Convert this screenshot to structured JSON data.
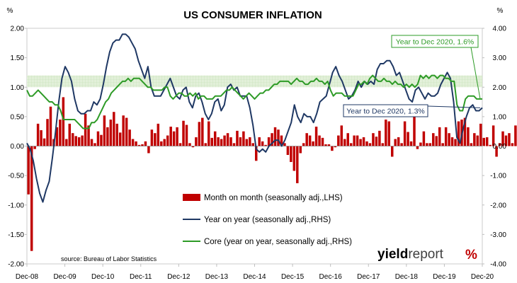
{
  "chart_data": {
    "type": "bar+line",
    "title": "US CONSUMER INFLATION",
    "left_unit": "%",
    "right_unit": "%",
    "source": "source: Bureau of Labor Statistics",
    "logo": {
      "prefix": "yield",
      "suffix": "report",
      "mark": "%",
      "mark_color": "#c00000"
    },
    "x_tick_labels": [
      "Dec-08",
      "Dec-09",
      "Dec-10",
      "Dec-11",
      "Dec-12",
      "Dec-13",
      "Dec-14",
      "Dec-15",
      "Dec-16",
      "Dec-17",
      "Dec-18",
      "Dec-19",
      "Dec-20"
    ],
    "x_start": "2008-12",
    "x_end": "2020-12",
    "y_left": {
      "min": -2.0,
      "max": 2.0,
      "ticks": [
        "-2.00",
        "-1.50",
        "-1.00",
        "-0.50",
        "0.00",
        "0.50",
        "1.00",
        "1.50",
        "2.00"
      ]
    },
    "y_right": {
      "min": -4.0,
      "max": 4.0,
      "ticks": [
        "-4.00",
        "-3.00",
        "-2.00",
        "-1.00",
        "0.00",
        "1.00",
        "2.00",
        "3.00",
        "4.00"
      ]
    },
    "target_band_rhs": [
      2.0,
      2.4
    ],
    "grid": false,
    "legend_position": "bottom-center",
    "series": [
      {
        "name": "Month on month (seasonally adj.,LHS)",
        "type": "bar",
        "axis": "left",
        "color": "#c00000",
        "values": [
          -0.82,
          -1.78,
          -0.05,
          0.38,
          0.27,
          0.13,
          0.46,
          0.67,
          0.12,
          0.32,
          0.45,
          0.83,
          0.12,
          0.38,
          0.22,
          0.17,
          0.15,
          0.18,
          0.55,
          0.35,
          0.12,
          0.05,
          0.25,
          0.19,
          0.52,
          0.32,
          0.45,
          0.58,
          0.38,
          0.23,
          0.52,
          0.48,
          0.28,
          0.12,
          0.08,
          0.02,
          0.03,
          0.08,
          -0.12,
          0.28,
          0.22,
          0.38,
          0.08,
          0.12,
          0.18,
          0.33,
          0.25,
          0.32,
          0.05,
          0.43,
          0.36,
          0.05,
          -0.02,
          0.15,
          0.41,
          0.48,
          0.05,
          0.42,
          0.14,
          0.25,
          0.15,
          0.12,
          0.18,
          0.22,
          0.15,
          0.05,
          0.26,
          0.15,
          0.25,
          0.12,
          0.15,
          0.05,
          -0.25,
          0.15,
          0.08,
          0.02,
          0.15,
          0.22,
          0.32,
          0.28,
          0.18,
          0.05,
          -0.15,
          -0.27,
          -0.42,
          -0.63,
          -0.12,
          0.05,
          0.22,
          0.18,
          0.08,
          0.33,
          0.18,
          0.14,
          0.03,
          0.03,
          -0.08,
          -0.02,
          0.18,
          0.35,
          0.12,
          0.22,
          0.05,
          0.18,
          0.18,
          0.12,
          0.15,
          0.08,
          0.05,
          0.22,
          0.16,
          0.26,
          0.05,
          0.45,
          0.42,
          -0.18,
          0.12,
          0.15,
          0.05,
          0.42,
          0.24,
          0.08,
          0.52,
          -0.05,
          0.06,
          0.25,
          0.05,
          0.05,
          0.22,
          0.17,
          0.32,
          0.05,
          0.32,
          0.22,
          0.15,
          0.12,
          0.42,
          0.45,
          0.48,
          0.32,
          0.05,
          0.22,
          0.18,
          0.38,
          0.14,
          0.15,
          0.02,
          0.35,
          -0.18,
          0.05,
          0.25,
          0.18,
          0.22,
          0.05,
          0.35,
          0.28,
          0.12,
          0.02,
          0.18,
          0.22,
          0.12,
          0.05,
          -0.42,
          -0.78,
          0.58,
          0.62,
          0.48,
          0.38,
          0.05,
          0.25,
          0.05,
          0.05,
          0.38
        ]
      },
      {
        "name": "Year on year (seasonally adj.,RHS)",
        "type": "line",
        "axis": "right",
        "color": "#1f3864",
        "values": [
          0.1,
          -0.1,
          -0.5,
          -1.1,
          -1.6,
          -1.9,
          -1.5,
          -1.2,
          -0.4,
          0.5,
          1.5,
          2.3,
          2.7,
          2.5,
          2.2,
          1.6,
          1.2,
          1.1,
          1.1,
          1.2,
          1.2,
          1.5,
          1.4,
          1.6,
          2.1,
          2.7,
          3.2,
          3.5,
          3.6,
          3.6,
          3.8,
          3.8,
          3.7,
          3.5,
          3.3,
          2.9,
          2.6,
          2.3,
          2.7,
          2.0,
          1.7,
          1.7,
          1.7,
          1.9,
          2.1,
          2.3,
          2.0,
          1.7,
          1.6,
          1.9,
          2.0,
          1.5,
          1.3,
          1.7,
          1.8,
          1.5,
          1.1,
          0.9,
          1.1,
          1.5,
          1.6,
          1.2,
          1.4,
          2.0,
          2.1,
          1.9,
          2.0,
          1.7,
          1.7,
          1.7,
          1.3,
          0.7,
          -0.1,
          -0.2,
          -0.1,
          -0.2,
          0.0,
          0.1,
          0.2,
          0.2,
          0.0,
          0.2,
          0.5,
          0.8,
          1.4,
          1.0,
          0.8,
          1.1,
          1.0,
          1.0,
          0.8,
          1.1,
          1.5,
          1.6,
          1.7,
          2.1,
          2.5,
          2.7,
          2.4,
          2.2,
          1.9,
          1.6,
          1.7,
          1.9,
          2.2,
          2.0,
          2.2,
          2.1,
          2.2,
          2.1,
          2.6,
          2.8,
          2.8,
          2.9,
          2.9,
          2.7,
          2.4,
          2.5,
          2.2,
          1.9,
          1.6,
          1.5,
          1.9,
          2.0,
          1.8,
          1.6,
          1.8,
          1.7,
          1.7,
          1.8,
          2.1,
          2.3,
          2.5,
          2.3,
          1.5,
          0.3,
          0.1,
          0.6,
          1.0,
          1.3,
          1.4,
          1.2,
          1.2,
          1.3
        ]
      },
      {
        "name": "Core (year on year, seasonally adj.,RHS)",
        "type": "line",
        "axis": "right",
        "color": "#2e9b27",
        "values": [
          1.9,
          1.7,
          1.7,
          1.8,
          1.9,
          1.8,
          1.7,
          1.6,
          1.5,
          1.5,
          1.4,
          1.4,
          1.2,
          0.9,
          0.9,
          0.9,
          0.9,
          0.9,
          0.8,
          0.7,
          0.6,
          0.6,
          0.6,
          0.8,
          0.8,
          0.9,
          1.1,
          1.3,
          1.5,
          1.6,
          1.8,
          1.9,
          2.0,
          2.1,
          2.2,
          2.2,
          2.3,
          2.2,
          2.3,
          2.3,
          2.3,
          2.2,
          2.1,
          2.0,
          2.0,
          1.9,
          1.9,
          1.9,
          1.9,
          2.0,
          2.0,
          1.7,
          1.6,
          1.7,
          1.8,
          1.8,
          1.7,
          1.7,
          1.8,
          1.7,
          1.8,
          1.6,
          1.7,
          1.7,
          1.6,
          1.6,
          1.6,
          1.7,
          1.7,
          1.7,
          1.8,
          1.9,
          1.9,
          2.0,
          1.9,
          1.8,
          1.7,
          1.6,
          1.7,
          1.8,
          1.7,
          1.6,
          1.7,
          1.8,
          1.8,
          1.9,
          1.9,
          2.0,
          2.1,
          2.1,
          2.2,
          2.2,
          2.2,
          2.2,
          2.1,
          2.2,
          2.3,
          2.2,
          2.2,
          2.1,
          2.1,
          2.2,
          2.2,
          2.3,
          2.2,
          2.2,
          2.1,
          2.2,
          1.9,
          1.7,
          1.8,
          1.8,
          1.8,
          1.7,
          1.7,
          1.7,
          1.7,
          1.9,
          2.1,
          2.1,
          2.2,
          2.1,
          2.3,
          2.4,
          2.3,
          2.2,
          2.2,
          2.3,
          2.2,
          2.2,
          2.1,
          2.2,
          2.1,
          2.1,
          2.0,
          2.1,
          2.0,
          2.1,
          2.0,
          2.1,
          2.4,
          2.3,
          2.4,
          2.3,
          2.4,
          2.4,
          2.3,
          2.4,
          2.4,
          2.3,
          2.3,
          2.2,
          2.2,
          1.4,
          1.2,
          1.2,
          1.6,
          1.7,
          1.7,
          1.7,
          1.6,
          1.6,
          1.6
        ]
      }
    ],
    "annotations": [
      {
        "text": "Year to Dec 2020, 1.6%",
        "series": "Core (year on year, seasonally adj.,RHS)"
      },
      {
        "text": "Year to Dec 2020, 1.3%",
        "series": "Year on year (seasonally adj.,RHS)"
      }
    ]
  }
}
